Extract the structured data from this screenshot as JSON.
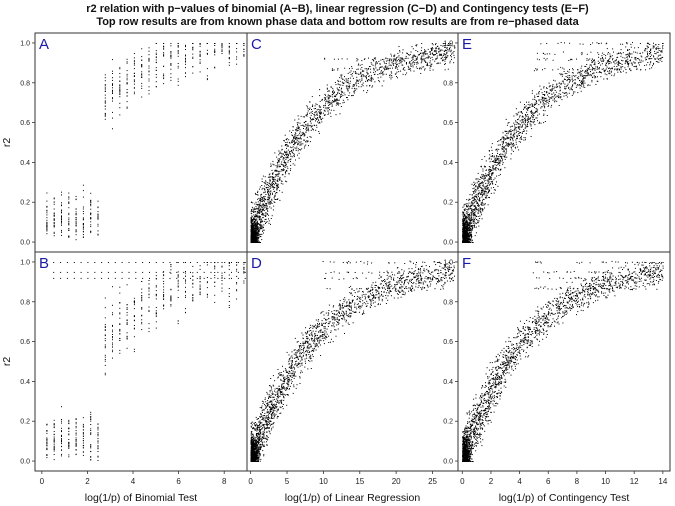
{
  "title_lines": [
    "r2 relation with p−values of binomial (A−B), linear regression (C−D) and Contingency tests (E−F)",
    "Top row results are from known phase data and bottom row results are from re−phased data"
  ],
  "colors": {
    "points": "#000000",
    "panel_letter": "#1a1aa6",
    "frame": "#333333"
  },
  "chart_data": [
    {
      "type": "scatter",
      "panel": "A",
      "row": "top",
      "test": "binomial",
      "xlabel": "",
      "ylabel": "r2",
      "xlim": [
        -0.3,
        9.0
      ],
      "ylim": [
        -0.05,
        1.05
      ],
      "xticks": [],
      "yticks": [
        0.0,
        0.2,
        0.4,
        0.6,
        0.8,
        1.0
      ],
      "ytick_labels": [
        "0.0",
        "0.2",
        "0.4",
        "0.6",
        "0.8",
        "1.0"
      ],
      "shape": {
        "form": "discrete-columns",
        "x_max": 9.0,
        "curve_k": 0.45,
        "spread": 0.55,
        "density_step": 0.32
      }
    },
    {
      "type": "scatter",
      "panel": "C",
      "row": "top",
      "test": "linear regression",
      "xlabel": "",
      "ylabel": "",
      "xlim": [
        -0.5,
        28.5
      ],
      "ylim": [
        -0.05,
        1.05
      ],
      "xticks": [],
      "yticks": [],
      "ytick_labels": [],
      "shape": {
        "form": "curve",
        "x_max": 28.0,
        "k": 0.115,
        "n_points": 2000,
        "bands": [
          0.87,
          0.92
        ]
      }
    },
    {
      "type": "scatter",
      "panel": "E",
      "row": "top",
      "test": "contingency",
      "xlabel": "",
      "ylabel": "",
      "xlim": [
        -0.3,
        14.5
      ],
      "ylim": [
        -0.05,
        1.05
      ],
      "xticks": [],
      "yticks": [
        0.0,
        0.2,
        0.4,
        0.6,
        0.8,
        1.0
      ],
      "ytick_labels": [
        "0.0",
        "0.2",
        "0.4",
        "0.6",
        "0.8",
        "1.0"
      ],
      "shape": {
        "form": "curve",
        "x_max": 14.0,
        "k": 0.22,
        "n_points": 2000,
        "bands": [
          0.87,
          0.92,
          0.95,
          1.0
        ]
      }
    },
    {
      "type": "scatter",
      "panel": "B",
      "row": "bottom",
      "test": "binomial",
      "xlabel": "log(1/p) of Binomial Test",
      "ylabel": "r2",
      "xlim": [
        -0.3,
        9.0
      ],
      "ylim": [
        -0.05,
        1.05
      ],
      "xticks": [
        0,
        2,
        4,
        6,
        8
      ],
      "xtick_labels": [
        "0",
        "2",
        "4",
        "6",
        "8"
      ],
      "yticks": [
        0.0,
        0.2,
        0.4,
        0.6,
        0.8,
        1.0
      ],
      "ytick_labels": [
        "0.0",
        "0.2",
        "0.4",
        "0.6",
        "0.8",
        "1.0"
      ],
      "shape": {
        "form": "discrete-columns",
        "x_max": 9.0,
        "curve_k": 0.35,
        "spread": 0.7,
        "density_step": 0.32,
        "bands": [
          0.92,
          0.95,
          1.0
        ]
      }
    },
    {
      "type": "scatter",
      "panel": "D",
      "row": "bottom",
      "test": "linear regression",
      "xlabel": "log(1/p) of Linear Regression",
      "ylabel": "",
      "xlim": [
        -0.5,
        28.5
      ],
      "ylim": [
        -0.05,
        1.05
      ],
      "xticks": [
        0,
        5,
        10,
        15,
        20,
        25
      ],
      "xtick_labels": [
        "0",
        "5",
        "10",
        "15",
        "20",
        "25"
      ],
      "yticks": [],
      "ytick_labels": [],
      "shape": {
        "form": "curve",
        "x_max": 28.0,
        "k": 0.11,
        "n_points": 2000,
        "bands": [
          0.87,
          0.92,
          0.95,
          1.0
        ]
      }
    },
    {
      "type": "scatter",
      "panel": "F",
      "row": "bottom",
      "test": "contingency",
      "xlabel": "log(1/p) of Contingency Test",
      "ylabel": "",
      "xlim": [
        -0.3,
        14.5
      ],
      "ylim": [
        -0.05,
        1.05
      ],
      "xticks": [
        0,
        2,
        4,
        6,
        8,
        10,
        12,
        14
      ],
      "xtick_labels": [
        "0",
        "2",
        "4",
        "6",
        "8",
        "10",
        "12",
        "14"
      ],
      "yticks": [
        0.0,
        0.2,
        0.4,
        0.6,
        0.8,
        1.0
      ],
      "ytick_labels": [
        "0.0",
        "0.2",
        "0.4",
        "0.6",
        "0.8",
        "1.0"
      ],
      "shape": {
        "form": "curve",
        "x_max": 14.0,
        "k": 0.22,
        "n_points": 2000,
        "bands": [
          0.87,
          0.92,
          0.95,
          1.0
        ]
      }
    }
  ]
}
